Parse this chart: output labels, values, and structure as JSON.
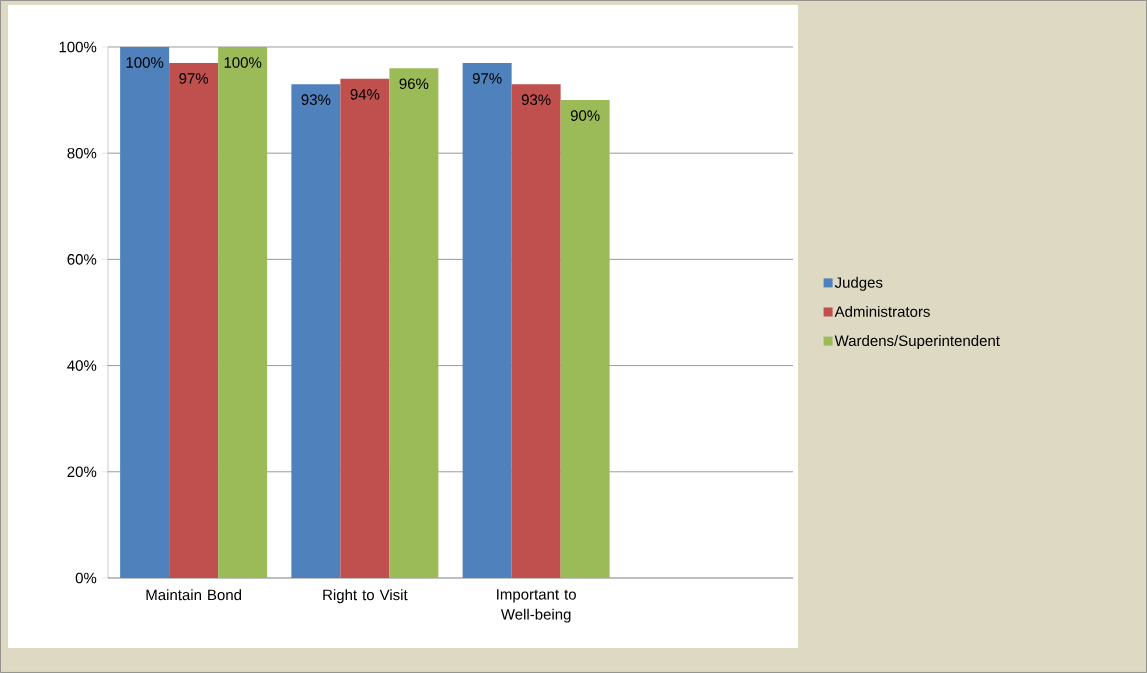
{
  "chart_data": {
    "type": "bar",
    "categories": [
      "Maintain Bond",
      "Right to Visit",
      "Important to Well-being",
      null
    ],
    "series": [
      {
        "name": "Judges",
        "color": "#4f81bd",
        "values": [
          100,
          93,
          97,
          null
        ],
        "value_labels": [
          "100%",
          "93%",
          "97%",
          null
        ]
      },
      {
        "name": "Administrators",
        "color": "#c0504d",
        "values": [
          97,
          94,
          93,
          null
        ],
        "value_labels": [
          "97%",
          "94%",
          "93%",
          null
        ]
      },
      {
        "name": "Wardens/Superintendent",
        "color": "#9bbb59",
        "values": [
          100,
          96,
          90,
          null
        ],
        "value_labels": [
          "100%",
          "96%",
          "90%",
          null
        ]
      }
    ],
    "ylim": [
      0,
      100
    ],
    "yticks": [
      {
        "value": 0,
        "label": "0%"
      },
      {
        "value": 20,
        "label": "20%"
      },
      {
        "value": 40,
        "label": "40%"
      },
      {
        "value": 60,
        "label": "60%"
      },
      {
        "value": 80,
        "label": "80%"
      },
      {
        "value": 100,
        "label": "100%"
      }
    ],
    "grid": "y",
    "legend": "right"
  }
}
